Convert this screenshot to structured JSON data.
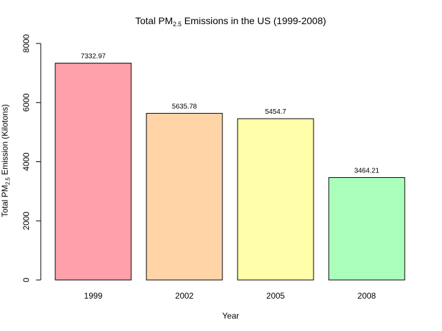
{
  "chart_data": {
    "type": "bar",
    "title": {
      "prefix": "Total PM",
      "subscript": "2.5",
      "suffix": " Emissions in the US (1999-2008)"
    },
    "xlabel": "Year",
    "ylabel": {
      "prefix": "Total PM",
      "subscript": "2.5",
      "suffix": " Emission (Kilotons)"
    },
    "categories": [
      "1999",
      "2002",
      "2005",
      "2008"
    ],
    "values": [
      7332.97,
      5635.78,
      5454.7,
      3464.21
    ],
    "data_labels": [
      "7332.97",
      "5635.78",
      "5454.7",
      "3464.21"
    ],
    "colors": [
      "#ffa0aa",
      "#ffd5a8",
      "#ffffaa",
      "#aaffbb"
    ],
    "ylim": [
      0,
      8000
    ],
    "yticks": [
      0,
      2000,
      4000,
      6000,
      8000
    ],
    "grid": false,
    "legend": "none"
  }
}
